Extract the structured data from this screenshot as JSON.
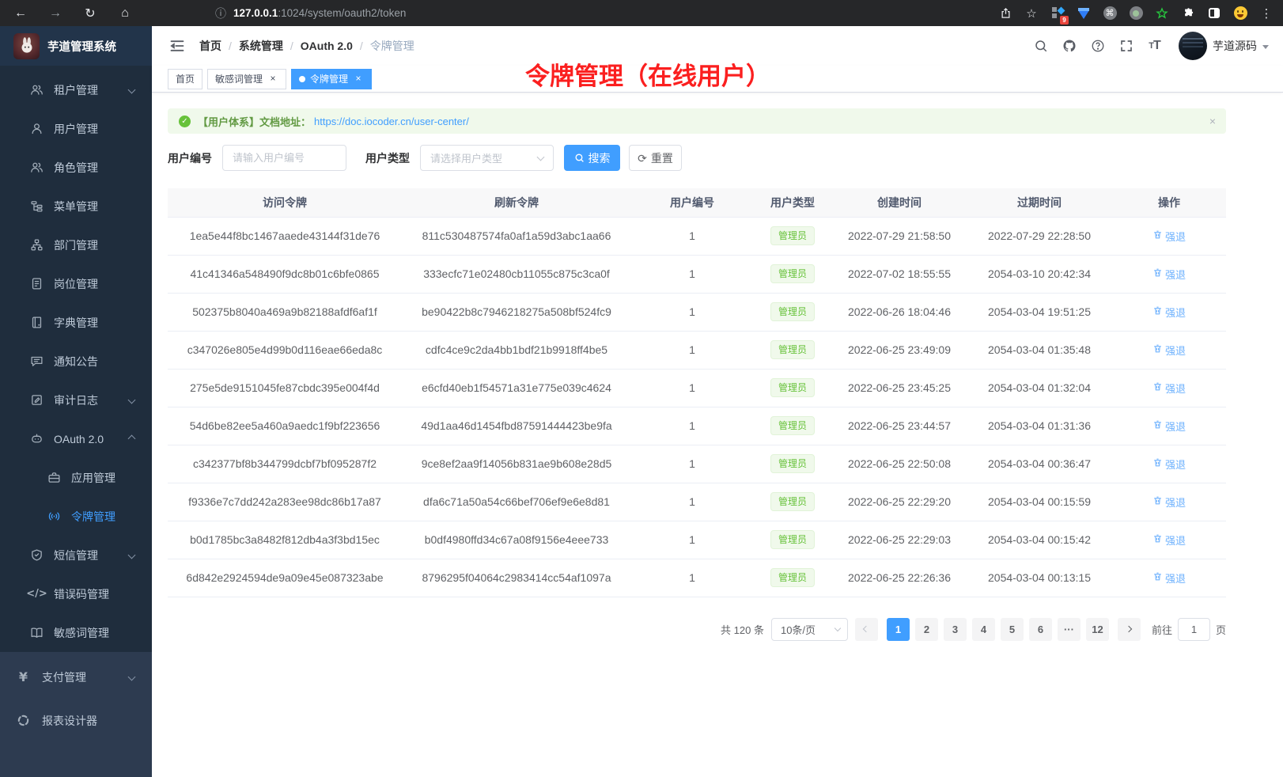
{
  "colors": {
    "accent": "#409eff",
    "success": "#67c23a",
    "annotation_red": "#fb1f1f",
    "sidebar_bg": "#1f2d3d",
    "sidebar_root_bg": "#2d3b50"
  },
  "browser": {
    "url_host": "127.0.0.1",
    "url_rest": ":1024/system/oauth2/token",
    "extension_badge": "9"
  },
  "sidebar": {
    "app_title": "芋道管理系统",
    "menu": [
      {
        "label": "租户管理",
        "icon": "tenant-users-icon",
        "level": "sub",
        "chevron": "down"
      },
      {
        "label": "用户管理",
        "icon": "user-icon",
        "level": "sub"
      },
      {
        "label": "角色管理",
        "icon": "role-users-icon",
        "level": "sub"
      },
      {
        "label": "菜单管理",
        "icon": "menu-tree-icon",
        "level": "sub"
      },
      {
        "label": "部门管理",
        "icon": "org-icon",
        "level": "sub"
      },
      {
        "label": "岗位管理",
        "icon": "post-icon",
        "level": "sub"
      },
      {
        "label": "字典管理",
        "icon": "dict-icon",
        "level": "sub"
      },
      {
        "label": "通知公告",
        "icon": "notice-icon",
        "level": "sub"
      },
      {
        "label": "审计日志",
        "icon": "audit-icon",
        "level": "sub",
        "chevron": "down"
      },
      {
        "label": "OAuth 2.0",
        "icon": "oauth-robot-icon",
        "level": "sub",
        "chevron": "up"
      },
      {
        "label": "应用管理",
        "icon": "app-briefcase-icon",
        "level": "sub2"
      },
      {
        "label": "令牌管理",
        "icon": "token-broadcast-icon",
        "level": "sub2",
        "active": true
      },
      {
        "label": "短信管理",
        "icon": "sms-shield-icon",
        "level": "sub",
        "chevron": "down"
      },
      {
        "label": "错误码管理",
        "icon": "errcode-icon",
        "level": "sub"
      },
      {
        "label": "敏感词管理",
        "icon": "sensitive-book-icon",
        "level": "sub"
      },
      {
        "label": "支付管理",
        "icon": "pay-yen-icon",
        "level": "root",
        "chevron": "down"
      },
      {
        "label": "报表设计器",
        "icon": "report-icon",
        "level": "root"
      }
    ]
  },
  "navbar": {
    "breadcrumb": [
      "首页",
      "系统管理",
      "OAuth 2.0",
      "令牌管理"
    ],
    "username": "芋道源码"
  },
  "annotation": {
    "text": "令牌管理（在线用户）"
  },
  "tags": [
    {
      "label": "首页",
      "closable": false,
      "active": false
    },
    {
      "label": "敏感词管理",
      "closable": true,
      "active": false
    },
    {
      "label": "令牌管理",
      "closable": true,
      "active": true
    }
  ],
  "alert": {
    "prefix": "【用户体系】文档地址：",
    "link": "https://doc.iocoder.cn/user-center/",
    "close": "×"
  },
  "filter": {
    "user_id_label": "用户编号",
    "user_id_placeholder": "请输入用户编号",
    "user_type_label": "用户类型",
    "user_type_placeholder": "请选择用户类型",
    "search_label": "搜索",
    "reset_label": "重置"
  },
  "table": {
    "columns": [
      "访问令牌",
      "刷新令牌",
      "用户编号",
      "用户类型",
      "创建时间",
      "过期时间",
      "操作"
    ],
    "user_type_tag": "管理员",
    "action_label": "强退",
    "rows": [
      {
        "access": "1ea5e44f8bc1467aaede43144f31de76",
        "refresh": "811c530487574fa0af1a59d3abc1aa66",
        "user_id": "1",
        "created": "2022-07-29 21:58:50",
        "expires": "2022-07-29 22:28:50"
      },
      {
        "access": "41c41346a548490f9dc8b01c6bfe0865",
        "refresh": "333ecfc71e02480cb11055c875c3ca0f",
        "user_id": "1",
        "created": "2022-07-02 18:55:55",
        "expires": "2054-03-10 20:42:34"
      },
      {
        "access": "502375b8040a469a9b82188afdf6af1f",
        "refresh": "be90422b8c7946218275a508bf524fc9",
        "user_id": "1",
        "created": "2022-06-26 18:04:46",
        "expires": "2054-03-04 19:51:25"
      },
      {
        "access": "c347026e805e4d99b0d116eae66eda8c",
        "refresh": "cdfc4ce9c2da4bb1bdf21b9918ff4be5",
        "user_id": "1",
        "created": "2022-06-25 23:49:09",
        "expires": "2054-03-04 01:35:48"
      },
      {
        "access": "275e5de9151045fe87cbdc395e004f4d",
        "refresh": "e6cfd40eb1f54571a31e775e039c4624",
        "user_id": "1",
        "created": "2022-06-25 23:45:25",
        "expires": "2054-03-04 01:32:04"
      },
      {
        "access": "54d6be82ee5a460a9aedc1f9bf223656",
        "refresh": "49d1aa46d1454fbd87591444423be9fa",
        "user_id": "1",
        "created": "2022-06-25 23:44:57",
        "expires": "2054-03-04 01:31:36"
      },
      {
        "access": "c342377bf8b344799dcbf7bf095287f2",
        "refresh": "9ce8ef2aa9f14056b831ae9b608e28d5",
        "user_id": "1",
        "created": "2022-06-25 22:50:08",
        "expires": "2054-03-04 00:36:47"
      },
      {
        "access": "f9336e7c7dd242a283ee98dc86b17a87",
        "refresh": "dfa6c71a50a54c66bef706ef9e6e8d81",
        "user_id": "1",
        "created": "2022-06-25 22:29:20",
        "expires": "2054-03-04 00:15:59"
      },
      {
        "access": "b0d1785bc3a8482f812db4a3f3bd15ec",
        "refresh": "b0df4980ffd34c67a08f9156e4eee733",
        "user_id": "1",
        "created": "2022-06-25 22:29:03",
        "expires": "2054-03-04 00:15:42"
      },
      {
        "access": "6d842e2924594de9a09e45e087323abe",
        "refresh": "8796295f04064c2983414cc54af1097a",
        "user_id": "1",
        "created": "2022-06-25 22:26:36",
        "expires": "2054-03-04 00:13:15"
      }
    ]
  },
  "pagination": {
    "total_text": "共 120 条",
    "page_size": "10条/页",
    "pages": [
      "1",
      "2",
      "3",
      "4",
      "5",
      "6",
      "...",
      "12"
    ],
    "active_page": "1",
    "goto_label": "前往",
    "goto_value": "1",
    "goto_suffix": "页"
  }
}
